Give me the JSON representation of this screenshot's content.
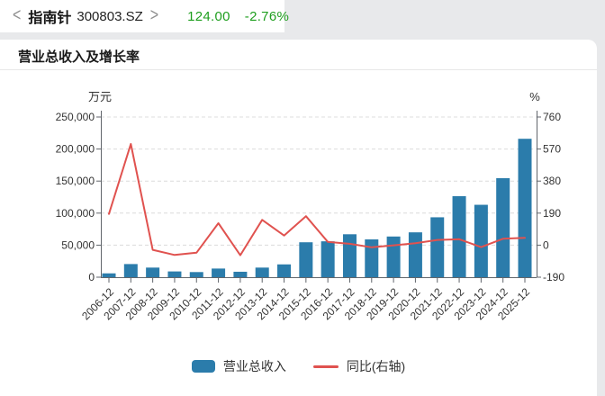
{
  "header": {
    "chevron_left": "<",
    "chevron_right": ">",
    "stock_name": "指南针",
    "stock_code": "300803.SZ",
    "price": "124.00",
    "change": "-2.76%",
    "quote_color": "#1e9e1e"
  },
  "card": {
    "title": "营业总收入及增长率"
  },
  "chart_data": {
    "type": "bar",
    "title": "营业总收入及增长率",
    "categories": [
      "2006-12",
      "2007-12",
      "2008-12",
      "2009-12",
      "2010-12",
      "2011-12",
      "2012-12",
      "2013-12",
      "2014-12",
      "2015-12",
      "2016-12",
      "2017-12",
      "2018-12",
      "2019-12",
      "2020-12",
      "2021-12",
      "2022-12",
      "2023-12",
      "2024-12",
      "2025-12"
    ],
    "series": [
      {
        "name": "营业总收入",
        "type": "bar",
        "axis": "left",
        "color": "#2b7cab",
        "values": [
          6000,
          20500,
          15000,
          9000,
          8000,
          13500,
          8500,
          15000,
          20000,
          54500,
          56000,
          67000,
          59000,
          63500,
          70000,
          93500,
          126500,
          113000,
          154500,
          216000
        ]
      },
      {
        "name": "同比(右轴)",
        "type": "line",
        "axis": "right",
        "color": "#e0524f",
        "values": [
          185,
          600,
          -28,
          -58,
          -45,
          130,
          -60,
          150,
          57,
          172,
          19,
          8,
          -13,
          -1,
          12,
          31,
          35,
          -12,
          38,
          43
        ]
      }
    ],
    "left_axis": {
      "label": "万元",
      "min": 0,
      "max": 250000,
      "ticks": [
        0,
        50000,
        100000,
        150000,
        200000,
        250000
      ]
    },
    "right_axis": {
      "label": "%",
      "min": -190,
      "max": 760,
      "ticks": [
        -190,
        0,
        190,
        380,
        570,
        760
      ]
    },
    "grid": true,
    "legend_position": "bottom",
    "colors": {
      "axis": "#61666c",
      "tick_label": "#333333",
      "gridline": "#dcdcdc"
    }
  }
}
